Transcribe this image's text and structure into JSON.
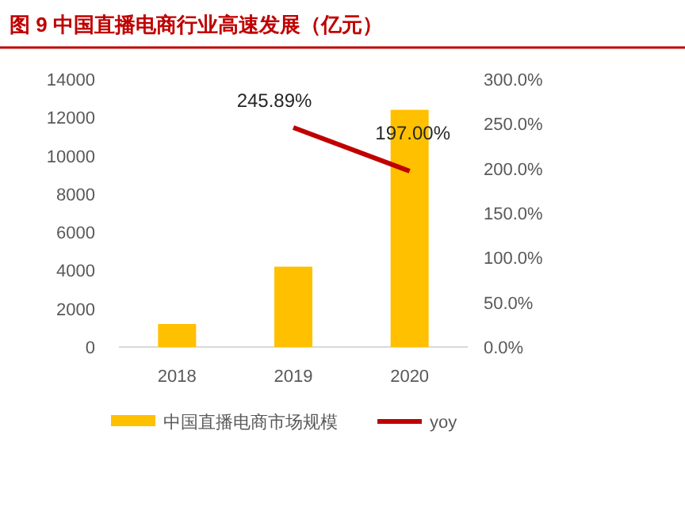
{
  "chart_data": {
    "type": "bar",
    "title": "图 9  中国直播电商行业高速发展（亿元）",
    "categories": [
      "2018",
      "2019",
      "2020"
    ],
    "series": [
      {
        "name": "中国直播电商市场规模",
        "color": "#ffc000",
        "values": [
          1200,
          4200,
          12400
        ]
      },
      {
        "name": "yoy",
        "type": "line",
        "axis": "y2",
        "color": "#c00000",
        "values": [
          null,
          245.89,
          197.0
        ],
        "value_labels": [
          null,
          "245.89%",
          "197.00%"
        ]
      }
    ],
    "ylim": [
      0,
      14000
    ],
    "yticks": [
      0,
      2000,
      4000,
      6000,
      8000,
      10000,
      12000,
      14000
    ],
    "y2lim": [
      0,
      300
    ],
    "y2ticks": [
      {
        "value": 0,
        "label": "0.0%"
      },
      {
        "value": 50,
        "label": "50.0%"
      },
      {
        "value": 100,
        "label": "100.0%"
      },
      {
        "value": 150,
        "label": "150.0%"
      },
      {
        "value": 200,
        "label": "200.0%"
      },
      {
        "value": 250,
        "label": "250.0%"
      },
      {
        "value": 300,
        "label": "300.0%"
      }
    ],
    "grid": false,
    "legend": "bottom"
  }
}
